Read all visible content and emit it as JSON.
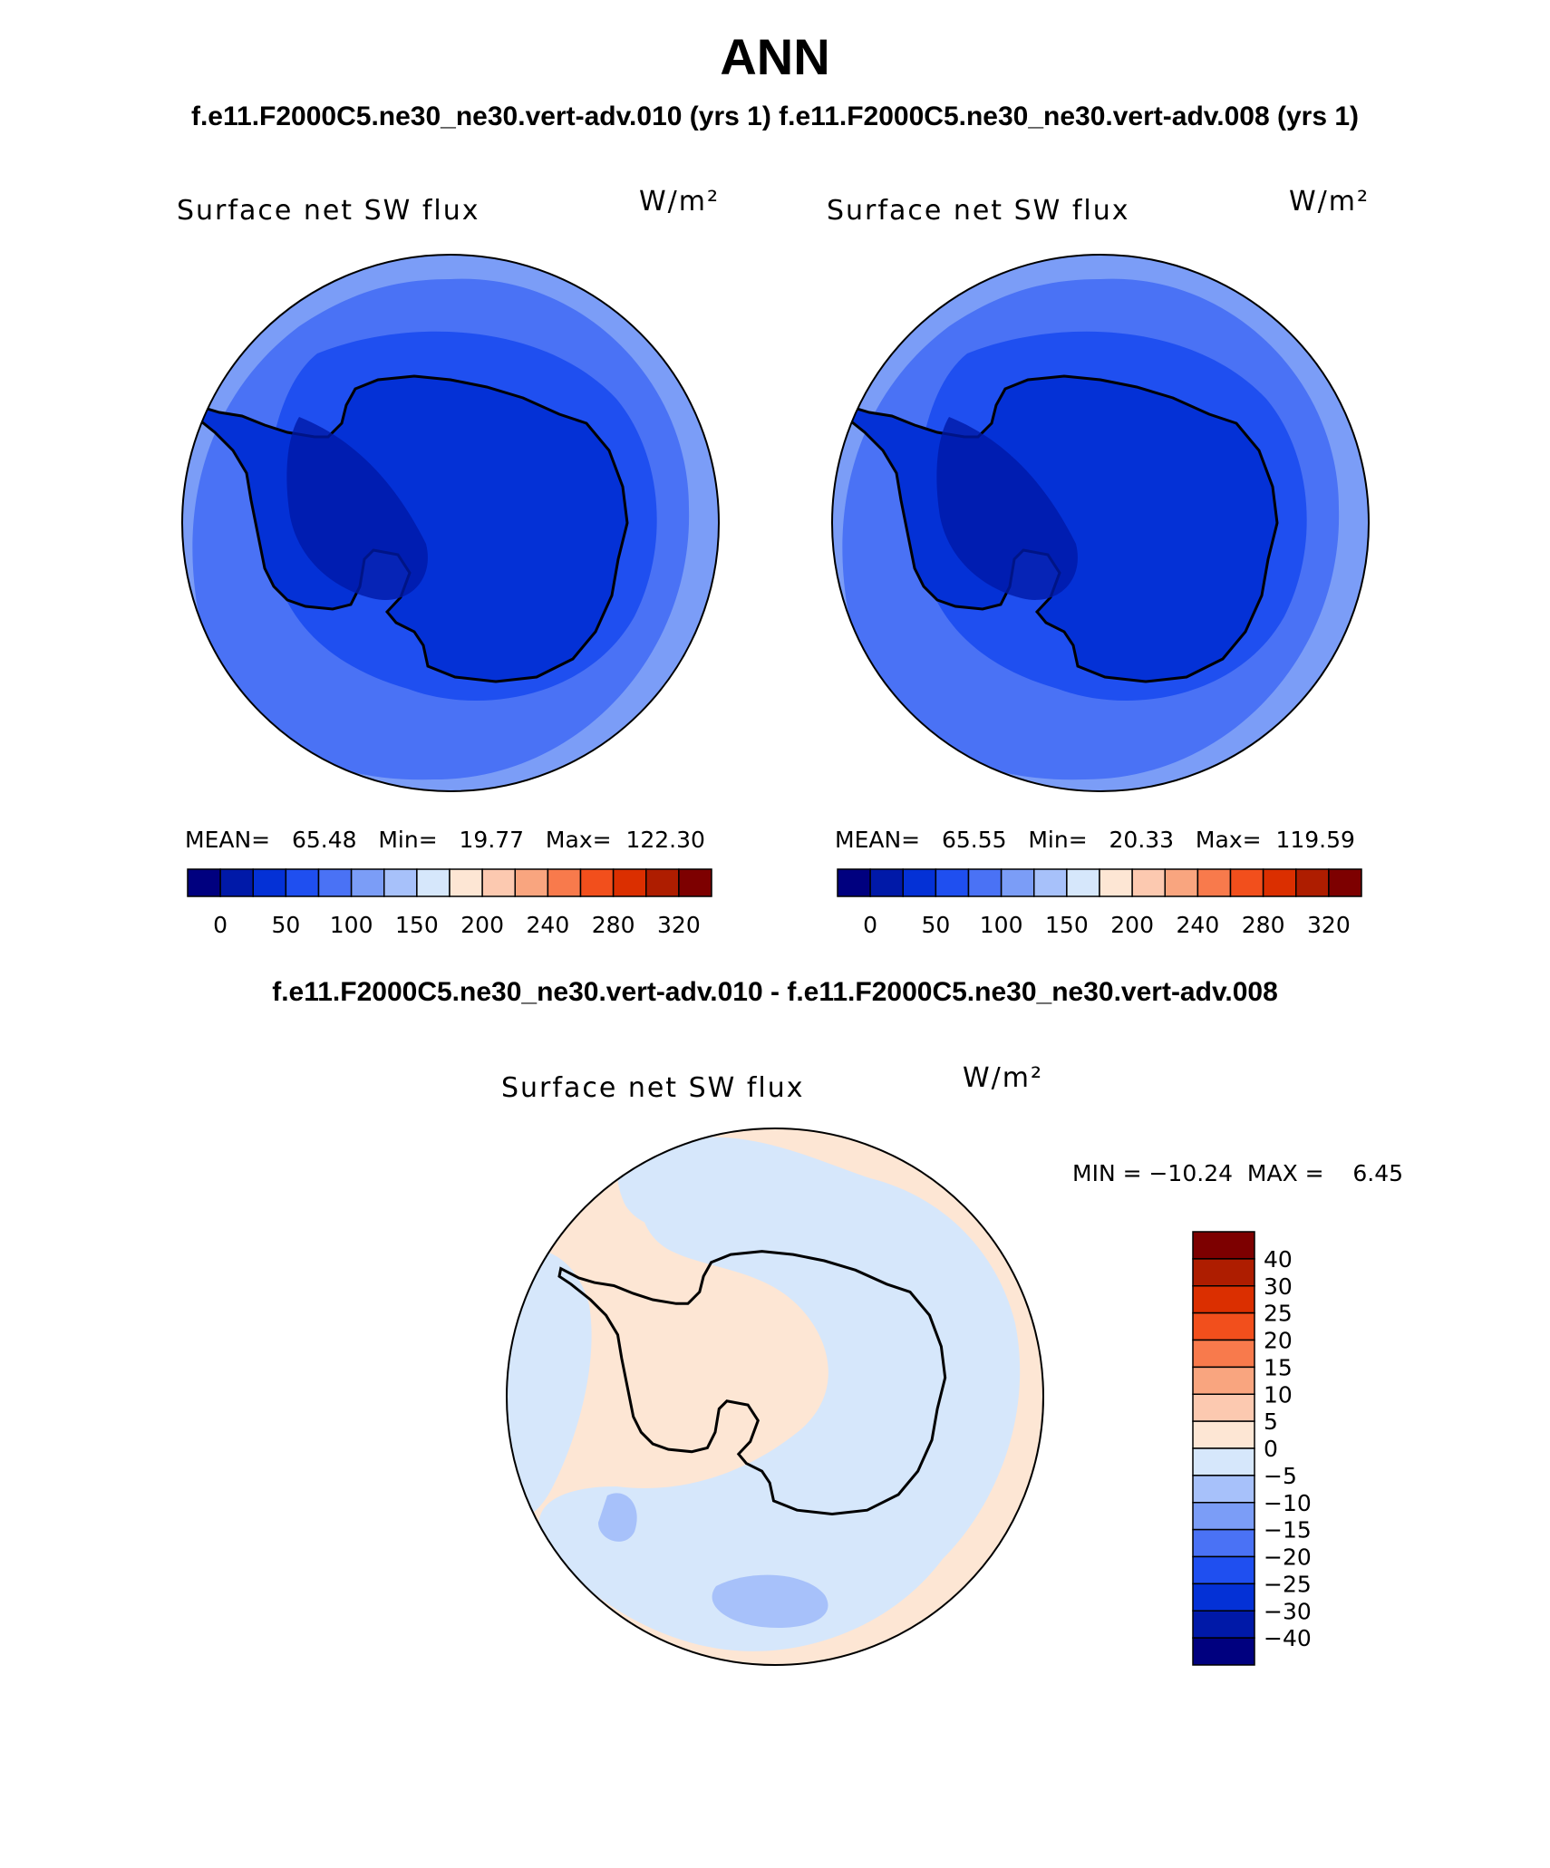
{
  "title": "ANN",
  "case_title": "f.e11.F2000C5.ne30_ne30.vert-adv.010 (yrs 1)  f.e11.F2000C5.ne30_ne30.vert-adv.008 (yrs 1)",
  "diff_title": "f.e11.F2000C5.ne30_ne30.vert-adv.010 - f.e11.F2000C5.ne30_ne30.vert-adv.008",
  "panels": [
    {
      "variable": "Surface net SW flux",
      "units": "W/m²",
      "stats": "MEAN=   65.48   Min=   19.77   Max=  122.30"
    },
    {
      "variable": "Surface net SW flux",
      "units": "W/m²",
      "stats": "MEAN=   65.55   Min=   20.33   Max=  119.59"
    }
  ],
  "diff_panel": {
    "variable": "Surface net SW flux",
    "units": "W/m²",
    "stats": "MIN = −10.24  MAX =    6.45"
  },
  "colorbar_abs": {
    "colors": [
      "#00007f",
      "#0019a8",
      "#0431d6",
      "#1f4ff0",
      "#4a72f5",
      "#7b9df7",
      "#a7c1fa",
      "#d6e7fb",
      "#fde6d4",
      "#fcc9b0",
      "#f9a57f",
      "#f87a4c",
      "#f24f1c",
      "#db2f00",
      "#ae1d00",
      "#7d0000"
    ],
    "labels": [
      "0",
      "50",
      "100",
      "150",
      "200",
      "240",
      "280",
      "320"
    ]
  },
  "colorbar_diff": {
    "colors": [
      "#7d0000",
      "#ae1d00",
      "#db2f00",
      "#f24f1c",
      "#f87a4c",
      "#f9a57f",
      "#fcc9b0",
      "#fde6d4",
      "#d6e7fb",
      "#a7c1fa",
      "#7b9df7",
      "#4a72f5",
      "#1f4ff0",
      "#0431d6",
      "#0019a8",
      "#00007f"
    ],
    "labels": [
      "40",
      "30",
      "25",
      "20",
      "15",
      "10",
      "5",
      "0",
      "−5",
      "−10",
      "−15",
      "−20",
      "−25",
      "−30",
      "−40"
    ]
  },
  "map_colors": {
    "ocean_outer": "#7b9df7",
    "ocean_mid": "#4a72f5",
    "ocean_inner": "#1f4ff0",
    "continent": "#0431d6",
    "dark": "#0019a8",
    "diff_positive": "#fde6d4",
    "diff_negative": "#d6e7fb",
    "diff_neg2": "#a7c1fa"
  }
}
